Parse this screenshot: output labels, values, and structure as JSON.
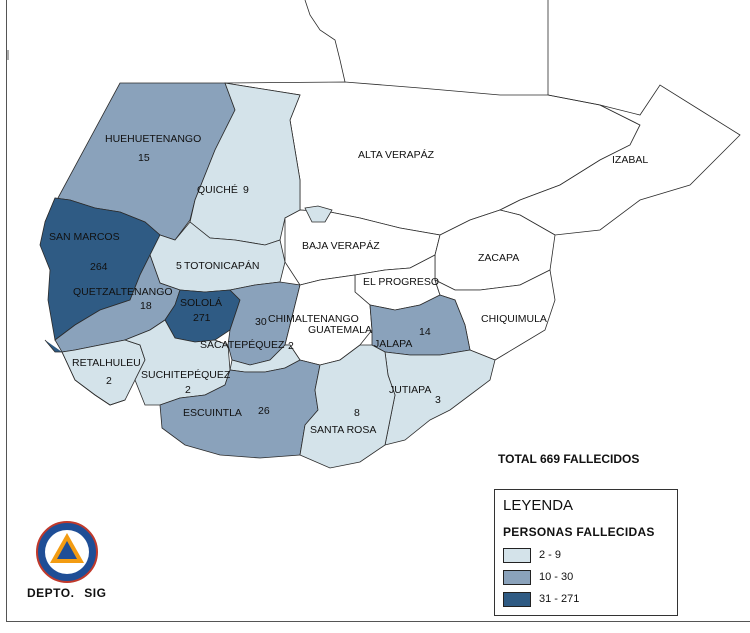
{
  "map": {
    "departments": [
      {
        "id": "huehuetenango",
        "name": "HUEHUETENANGO",
        "value": "15",
        "class": "2"
      },
      {
        "id": "quiche",
        "name": "QUICHÉ",
        "value": "9",
        "class": "1"
      },
      {
        "id": "alta-verapaz",
        "name": "ALTA VERAPÁZ",
        "value": "",
        "class": "0"
      },
      {
        "id": "izabal",
        "name": "IZABAL",
        "value": "",
        "class": "0"
      },
      {
        "id": "san-marcos",
        "name": "SAN MARCOS",
        "value": "264",
        "class": "3"
      },
      {
        "id": "totonicapan",
        "name": "TOTONICAPÁN",
        "value": "5",
        "class": "1"
      },
      {
        "id": "baja-verapaz",
        "name": "BAJA VERAPÁZ",
        "value": "",
        "class": "0"
      },
      {
        "id": "zacapa",
        "name": "ZACAPA",
        "value": "",
        "class": "0"
      },
      {
        "id": "el-progreso",
        "name": "EL PROGRESO",
        "value": "",
        "class": "0"
      },
      {
        "id": "quetzaltenango",
        "name": "QUETZALTENANGO",
        "value": "18",
        "class": "2"
      },
      {
        "id": "solola",
        "name": "SOLOLÁ",
        "value": "271",
        "class": "3"
      },
      {
        "id": "chimaltenango",
        "name": "CHIMALTENANGO",
        "value": "30",
        "class": "2"
      },
      {
        "id": "guatemala",
        "name": "GUATEMALA",
        "value": "",
        "class": "0"
      },
      {
        "id": "chiquimula",
        "name": "CHIQUIMULA",
        "value": "",
        "class": "0"
      },
      {
        "id": "jalapa",
        "name": "JALAPA",
        "value": "14",
        "class": "2"
      },
      {
        "id": "sacatepequez",
        "name": "SACATEPÉQUEZ",
        "value": "2",
        "class": "1"
      },
      {
        "id": "retalhuleu",
        "name": "RETALHULEU",
        "value": "2",
        "class": "1"
      },
      {
        "id": "suchitepequez",
        "name": "SUCHITEPÉQUEZ",
        "value": "2",
        "class": "1"
      },
      {
        "id": "escuintla",
        "name": "ESCUINTLA",
        "value": "26",
        "class": "2"
      },
      {
        "id": "jutiapa",
        "name": "JUTIAPA",
        "value": "3",
        "class": "1"
      },
      {
        "id": "santa-rosa",
        "name": "SANTA ROSA",
        "value": "8",
        "class": "1"
      }
    ]
  },
  "total_label": "TOTAL 669 FALLECIDOS",
  "legend": {
    "title": "LEYENDA",
    "subtitle": "PERSONAS FALLECIDAS",
    "classes": [
      {
        "label": "2 - 9",
        "color": "#d4e3ea"
      },
      {
        "label": "10 - 30",
        "color": "#8aa2bb"
      },
      {
        "label": "31 - 271",
        "color": "#2f5b84"
      }
    ]
  },
  "logo": {
    "text": "CONRED"
  },
  "footer": {
    "dept_sig": "DEPTO. SIG"
  },
  "colors": {
    "class0": "#ffffff",
    "class1": "#d4e3ea",
    "class2": "#8aa2bb",
    "class3": "#2f5b84"
  }
}
